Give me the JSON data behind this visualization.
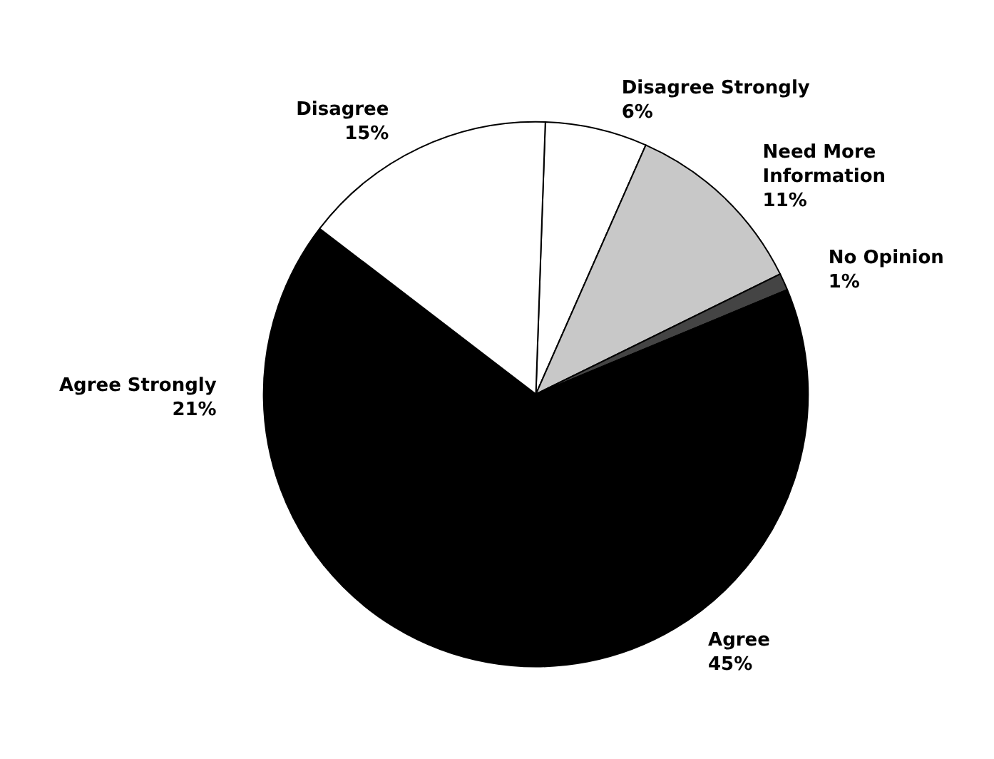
{
  "chart_data": {
    "type": "pie",
    "categories": [
      "Disagree Strongly",
      "Need More Information",
      "No Opinion",
      "Agree",
      "Agree Strongly",
      "Disagree"
    ],
    "values": [
      6,
      11,
      1,
      45,
      21,
      15
    ],
    "colors": [
      "#ffffff",
      "#c8c8c8",
      "#444444",
      "#000000",
      "#000000",
      "#ffffff"
    ],
    "value_labels": [
      "6%",
      "11%",
      "1%",
      "45%",
      "21%",
      "15%"
    ]
  }
}
